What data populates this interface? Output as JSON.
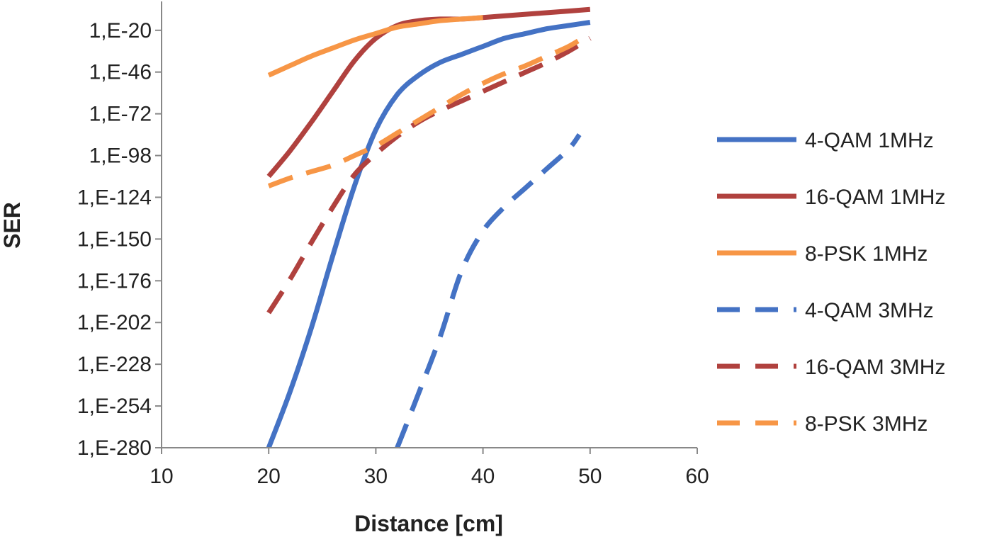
{
  "chart_data": {
    "type": "line",
    "title": "",
    "xlabel": "Distance [cm]",
    "ylabel": "SER",
    "xlim": [
      10,
      60
    ],
    "x_ticks": [
      10,
      20,
      30,
      40,
      50,
      60
    ],
    "y_scale": "log10",
    "ylim_exponent": [
      -280,
      -2
    ],
    "y_tick_exponents": [
      -20,
      -46,
      -72,
      -98,
      -124,
      -150,
      -176,
      -202,
      -228,
      -254,
      -280
    ],
    "y_tick_labels": [
      "1,E-20",
      "1,E-46",
      "1,E-72",
      "1,E-98",
      "1,E-124",
      "1,E-150",
      "1,E-176",
      "1,E-202",
      "1,E-228",
      "1,E-254",
      "1,E-280"
    ],
    "grid": false,
    "legend_position": "right",
    "series": [
      {
        "name": "4-QAM 1MHz",
        "color": "#4472C4",
        "dash": "solid",
        "x": [
          20,
          22,
          24,
          26,
          28,
          30,
          32,
          34,
          36,
          38,
          40,
          42,
          44,
          46,
          48,
          50
        ],
        "log10_ser": [
          -280,
          -245,
          -205,
          -160,
          -117,
          -82,
          -60,
          -48,
          -40,
          -35,
          -30,
          -25,
          -22,
          -19,
          -17,
          -15
        ]
      },
      {
        "name": "16-QAM 1MHz",
        "color": "#B0413E",
        "dash": "solid",
        "x": [
          20,
          22,
          24,
          26,
          28,
          30,
          32,
          34,
          36,
          38,
          40,
          42,
          44,
          46,
          48,
          50
        ],
        "log10_ser": [
          -111,
          -95,
          -77,
          -58,
          -39,
          -25,
          -17,
          -14,
          -13,
          -13,
          -12,
          -11,
          -10,
          -9,
          -8,
          -7
        ]
      },
      {
        "name": "8-PSK 1MHz",
        "color": "#F79646",
        "dash": "solid",
        "x": [
          20,
          22,
          24,
          26,
          28,
          30,
          32,
          34,
          36,
          38,
          40
        ],
        "log10_ser": [
          -48,
          -42,
          -36,
          -31,
          -26,
          -22,
          -18,
          -16,
          -14,
          -13,
          -12
        ]
      },
      {
        "name": "4-QAM 3MHz",
        "color": "#4472C4",
        "dash": "dashed",
        "x": [
          32,
          34,
          36,
          38,
          40,
          42,
          44,
          46,
          48,
          49
        ],
        "log10_ser": [
          -280,
          -246,
          -211,
          -170,
          -145,
          -130,
          -118,
          -106,
          -94,
          -85
        ]
      },
      {
        "name": "16-QAM 3MHz",
        "color": "#B0413E",
        "dash": "dashed",
        "x": [
          20,
          22,
          24,
          26,
          28,
          30,
          32,
          34,
          36,
          38,
          40,
          42,
          44,
          46,
          48,
          50
        ],
        "log10_ser": [
          -196,
          -175,
          -152,
          -130,
          -110,
          -97,
          -86,
          -77,
          -70,
          -64,
          -58,
          -52,
          -46,
          -40,
          -33,
          -25
        ]
      },
      {
        "name": "8-PSK 3MHz",
        "color": "#F79646",
        "dash": "dashed",
        "x": [
          20,
          22,
          24,
          26,
          28,
          30,
          32,
          34,
          36,
          38,
          40,
          42,
          44,
          46,
          48,
          50
        ],
        "log10_ser": [
          -117,
          -112,
          -108,
          -104,
          -98,
          -92,
          -84,
          -76,
          -68,
          -60,
          -53,
          -47,
          -42,
          -36,
          -30,
          -22
        ]
      }
    ]
  }
}
